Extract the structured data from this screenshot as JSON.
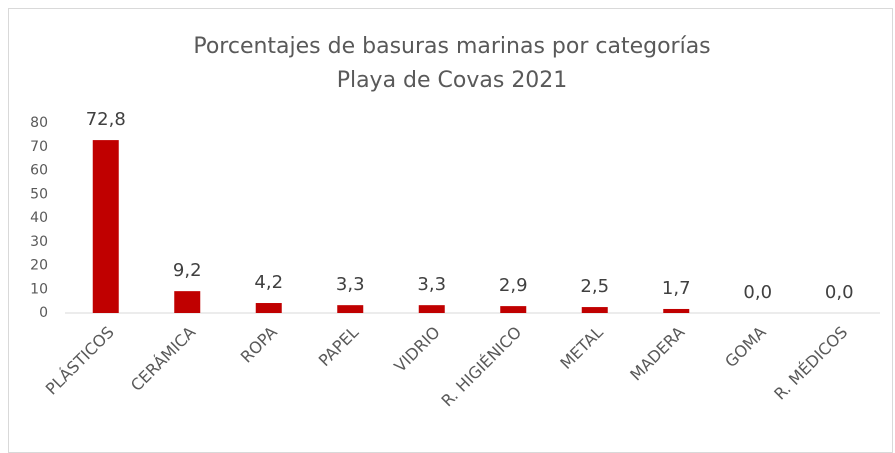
{
  "chart_data": {
    "type": "bar",
    "title": "Porcentajes de basuras marinas por categorías",
    "subtitle": "Playa de Covas 2021",
    "categories": [
      "PLÁSTICOS",
      "CERÁMICA",
      "ROPA",
      "PAPEL",
      "VIDRIO",
      "R. HIGIÉNICO",
      "METAL",
      "MADERA",
      "GOMA",
      "R. MÉDICOS"
    ],
    "values": [
      72.8,
      9.2,
      4.2,
      3.3,
      3.3,
      2.9,
      2.5,
      1.7,
      0.0,
      0.0
    ],
    "value_labels": [
      "72,8",
      "9,2",
      "4,2",
      "3,3",
      "3,3",
      "2,9",
      "2,5",
      "1,7",
      "0,0",
      "0,0"
    ],
    "color": "#c00000",
    "ylim": [
      0,
      80
    ],
    "yticks": [
      0,
      10,
      20,
      30,
      40,
      50,
      60,
      70,
      80
    ],
    "grid": false
  }
}
